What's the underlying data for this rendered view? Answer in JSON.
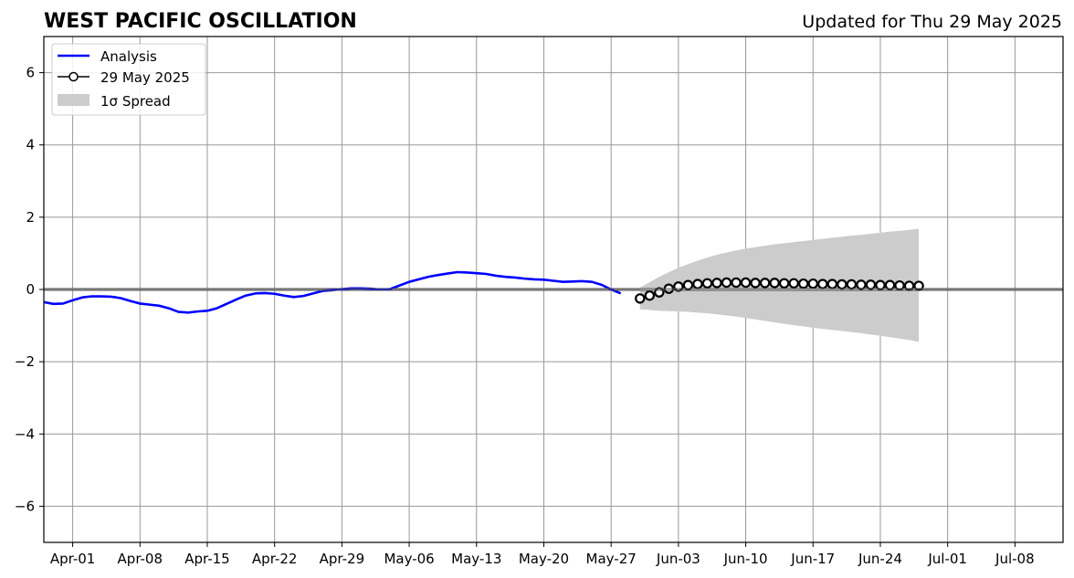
{
  "chart_data": {
    "type": "line",
    "title": "WEST PACIFIC OSCILLATION",
    "subtitle": "Updated for Thu 29 May 2025",
    "xlabel": "",
    "ylabel": "",
    "xlim": [
      "2025-03-29",
      "2025-07-13"
    ],
    "ylim": [
      -7,
      7
    ],
    "x_ticks": [
      "Apr-01",
      "Apr-08",
      "Apr-15",
      "Apr-22",
      "Apr-29",
      "May-06",
      "May-13",
      "May-20",
      "May-27",
      "Jun-03",
      "Jun-10",
      "Jun-17",
      "Jun-24",
      "Jul-01",
      "Jul-08"
    ],
    "y_ticks": [
      "6",
      "4",
      "2",
      "0",
      "−2",
      "−4",
      "−6"
    ],
    "grid": true,
    "legend_position": "top-left",
    "legend": [
      "Analysis",
      "29 May 2025",
      "1σ Spread"
    ],
    "colors": {
      "analysis": "#0000ff",
      "forecast_marker_edge": "#000000",
      "forecast_marker_fill": "#ffffff",
      "spread": "#cccccc",
      "grid": "#999999",
      "zero_line": "#555555"
    },
    "series": [
      {
        "name": "Analysis",
        "start": "2025-03-29",
        "step_days": 1,
        "values": [
          -0.35,
          -0.4,
          -0.39,
          -0.3,
          -0.22,
          -0.19,
          -0.19,
          -0.2,
          -0.24,
          -0.32,
          -0.39,
          -0.42,
          -0.45,
          -0.52,
          -0.62,
          -0.64,
          -0.61,
          -0.59,
          -0.52,
          -0.4,
          -0.28,
          -0.17,
          -0.11,
          -0.1,
          -0.12,
          -0.17,
          -0.21,
          -0.18,
          -0.11,
          -0.04,
          -0.02,
          0.01,
          0.03,
          0.03,
          0.02,
          0.0,
          0.01,
          0.11,
          0.21,
          0.28,
          0.35,
          0.4,
          0.44,
          0.48,
          0.47,
          0.45,
          0.43,
          0.38,
          0.35,
          0.33,
          0.3,
          0.28,
          0.27,
          0.24,
          0.21,
          0.22,
          0.23,
          0.21,
          0.13,
          0.0,
          -0.11
        ]
      },
      {
        "name": "29 May 2025",
        "start": "2025-05-30",
        "step_days": 1,
        "values": [
          -0.25,
          -0.17,
          -0.08,
          0.02,
          0.08,
          0.12,
          0.15,
          0.17,
          0.18,
          0.19,
          0.19,
          0.19,
          0.18,
          0.18,
          0.18,
          0.17,
          0.17,
          0.16,
          0.16,
          0.15,
          0.15,
          0.14,
          0.14,
          0.13,
          0.13,
          0.12,
          0.12,
          0.11,
          0.1,
          0.1
        ]
      },
      {
        "name": "1σ Spread",
        "start": "2025-05-30",
        "step_days": 1,
        "upper": [
          0.05,
          0.2,
          0.35,
          0.48,
          0.6,
          0.7,
          0.8,
          0.88,
          0.96,
          1.02,
          1.08,
          1.13,
          1.17,
          1.21,
          1.25,
          1.28,
          1.31,
          1.34,
          1.37,
          1.4,
          1.43,
          1.46,
          1.49,
          1.51,
          1.54,
          1.57,
          1.6,
          1.62,
          1.65,
          1.68
        ],
        "lower": [
          -0.55,
          -0.57,
          -0.59,
          -0.6,
          -0.61,
          -0.62,
          -0.64,
          -0.66,
          -0.69,
          -0.72,
          -0.75,
          -0.79,
          -0.83,
          -0.87,
          -0.91,
          -0.95,
          -0.99,
          -1.02,
          -1.06,
          -1.09,
          -1.12,
          -1.15,
          -1.18,
          -1.21,
          -1.25,
          -1.28,
          -1.32,
          -1.36,
          -1.4,
          -1.45
        ]
      }
    ]
  }
}
